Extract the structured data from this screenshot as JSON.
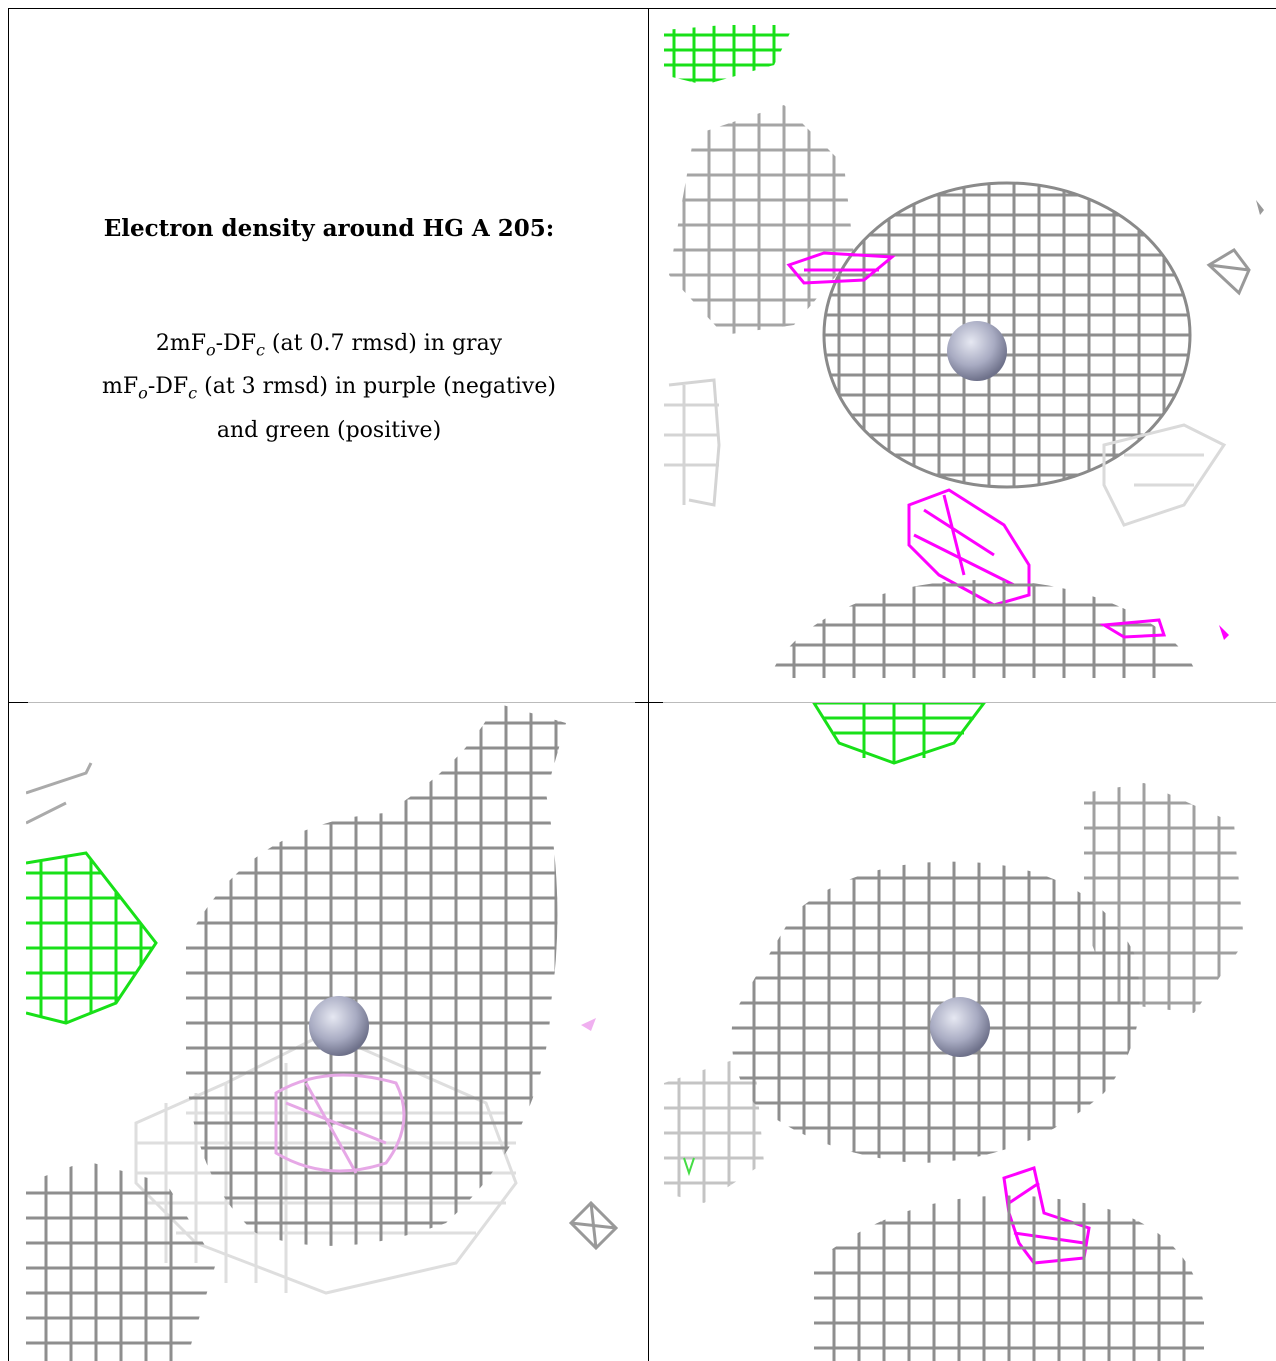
{
  "caption": {
    "title": "Electron density around HG A 205:",
    "line1": "2mFo-DFc (at 0.7 rmsd) in gray",
    "line2": "mFo-DFc (at 3 rmsd) in purple (negative)",
    "line3": "and green (positive)"
  },
  "colors": {
    "map_2fofc": "#9a9a9a",
    "map_fofc_negative": "#ff00ff",
    "map_fofc_positive": "#00e000",
    "atom": "#a8abc2"
  },
  "panels": [
    {
      "id": "view-1",
      "icon": "electron-density-mesh"
    },
    {
      "id": "view-2",
      "icon": "electron-density-mesh"
    },
    {
      "id": "view-3",
      "icon": "electron-density-mesh"
    }
  ]
}
